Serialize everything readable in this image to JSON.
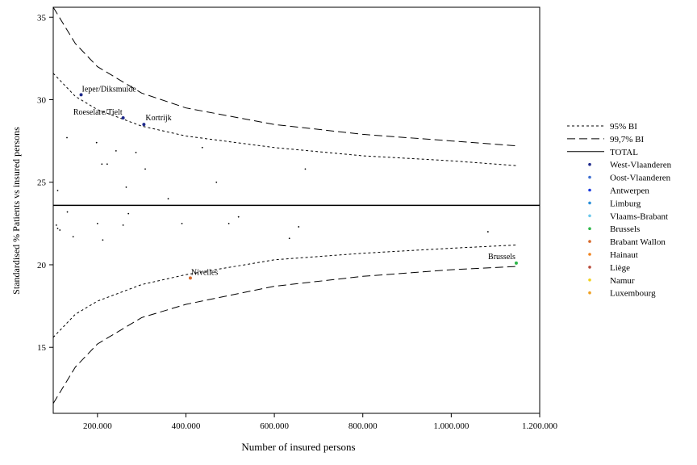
{
  "chart_data": {
    "type": "scatter",
    "title": "",
    "xlabel": "Number of insured persons",
    "ylabel": "Standardised % Patients vs insured persons",
    "xlim": [
      100000,
      1200000
    ],
    "ylim": [
      11,
      35.6
    ],
    "x_ticks": [
      {
        "value": 200000,
        "label": "200.000"
      },
      {
        "value": 400000,
        "label": "400.000"
      },
      {
        "value": 600000,
        "label": "600.000"
      },
      {
        "value": 800000,
        "label": "800.000"
      },
      {
        "value": 1000000,
        "label": "1.000.000"
      },
      {
        "value": 1200000,
        "label": "1.200.000"
      }
    ],
    "y_ticks": [
      {
        "value": 15,
        "label": "15"
      },
      {
        "value": 20,
        "label": "20"
      },
      {
        "value": 25,
        "label": "25"
      },
      {
        "value": 30,
        "label": "30"
      },
      {
        "value": 35,
        "label": "35"
      }
    ],
    "grid": false,
    "legend_position": "right",
    "total": 23.6,
    "legend": [
      {
        "label": "95% BI",
        "kind": "dotted"
      },
      {
        "label": "99,7% BI",
        "kind": "dashed"
      },
      {
        "label": "TOTAL",
        "kind": "solid"
      },
      {
        "label": "West-Vlaanderen",
        "kind": "dot",
        "color": "#1f2a8c"
      },
      {
        "label": "Oost-Vlaanderen",
        "kind": "dot",
        "color": "#3f6fd0"
      },
      {
        "label": "Antwerpen",
        "kind": "dot",
        "color": "#1a3adf"
      },
      {
        "label": "Limburg",
        "kind": "dot",
        "color": "#2a8fd8"
      },
      {
        "label": "Vlaams-Brabant",
        "kind": "dot",
        "color": "#6cc8ec"
      },
      {
        "label": "Brussels",
        "kind": "dot",
        "color": "#2fb84a"
      },
      {
        "label": "Brabant Wallon",
        "kind": "dot",
        "color": "#d8692a"
      },
      {
        "label": "Hainaut",
        "kind": "dot",
        "color": "#f0821e"
      },
      {
        "label": "Liège",
        "kind": "dot",
        "color": "#b84a3a"
      },
      {
        "label": "Namur",
        "kind": "dot",
        "color": "#f2d21c"
      },
      {
        "label": "Luxembourg",
        "kind": "dot",
        "color": "#f0a020"
      }
    ],
    "bands": {
      "ci95_upper": [
        [
          100000,
          31.6
        ],
        [
          150000,
          30.2
        ],
        [
          200000,
          29.4
        ],
        [
          300000,
          28.4
        ],
        [
          400000,
          27.8
        ],
        [
          600000,
          27.1
        ],
        [
          800000,
          26.6
        ],
        [
          1000000,
          26.3
        ],
        [
          1150000,
          26.0
        ]
      ],
      "ci95_lower": [
        [
          100000,
          15.6
        ],
        [
          150000,
          17.0
        ],
        [
          200000,
          17.8
        ],
        [
          300000,
          18.8
        ],
        [
          400000,
          19.4
        ],
        [
          600000,
          20.3
        ],
        [
          800000,
          20.7
        ],
        [
          1000000,
          21.0
        ],
        [
          1150000,
          21.2
        ]
      ],
      "ci997_upper": [
        [
          100000,
          35.6
        ],
        [
          150000,
          33.4
        ],
        [
          200000,
          32.0
        ],
        [
          300000,
          30.4
        ],
        [
          400000,
          29.5
        ],
        [
          600000,
          28.5
        ],
        [
          800000,
          27.9
        ],
        [
          1000000,
          27.5
        ],
        [
          1150000,
          27.2
        ]
      ],
      "ci997_lower": [
        [
          100000,
          11.6
        ],
        [
          150000,
          13.8
        ],
        [
          200000,
          15.2
        ],
        [
          300000,
          16.8
        ],
        [
          400000,
          17.6
        ],
        [
          600000,
          18.7
        ],
        [
          800000,
          19.3
        ],
        [
          1000000,
          19.7
        ],
        [
          1150000,
          19.9
        ]
      ]
    },
    "labeled_points": [
      {
        "label": "Ieper/Diksmuide",
        "x": 163000,
        "y": 30.3,
        "color": "#1f2a8c"
      },
      {
        "label": "Roeselare/Tielt",
        "x": 258000,
        "y": 28.9,
        "color": "#1f2a8c"
      },
      {
        "label": "Kortrijk",
        "x": 305000,
        "y": 28.5,
        "color": "#1f2a8c"
      },
      {
        "label": "Nivelles",
        "x": 410000,
        "y": 19.2,
        "color": "#d8692a"
      },
      {
        "label": "Brussels",
        "x": 1147000,
        "y": 20.1,
        "color": "#2fb84a"
      }
    ],
    "other_points": [
      [
        131000,
        27.7
      ],
      [
        110000,
        24.5
      ],
      [
        198000,
        27.4
      ],
      [
        242000,
        26.9
      ],
      [
        287000,
        26.8
      ],
      [
        210000,
        26.1
      ],
      [
        222000,
        26.1
      ],
      [
        308000,
        25.8
      ],
      [
        265000,
        24.7
      ],
      [
        360000,
        24.0
      ],
      [
        437000,
        27.1
      ],
      [
        469000,
        25.0
      ],
      [
        670000,
        25.8
      ],
      [
        132000,
        23.2
      ],
      [
        107000,
        22.4
      ],
      [
        110000,
        22.2
      ],
      [
        115000,
        22.1
      ],
      [
        145000,
        21.7
      ],
      [
        200000,
        22.5
      ],
      [
        212000,
        21.5
      ],
      [
        258000,
        22.4
      ],
      [
        270000,
        23.1
      ],
      [
        391000,
        22.5
      ],
      [
        497000,
        22.5
      ],
      [
        519000,
        22.9
      ],
      [
        634000,
        21.6
      ],
      [
        655000,
        22.3
      ],
      [
        1083000,
        22.0
      ]
    ]
  }
}
